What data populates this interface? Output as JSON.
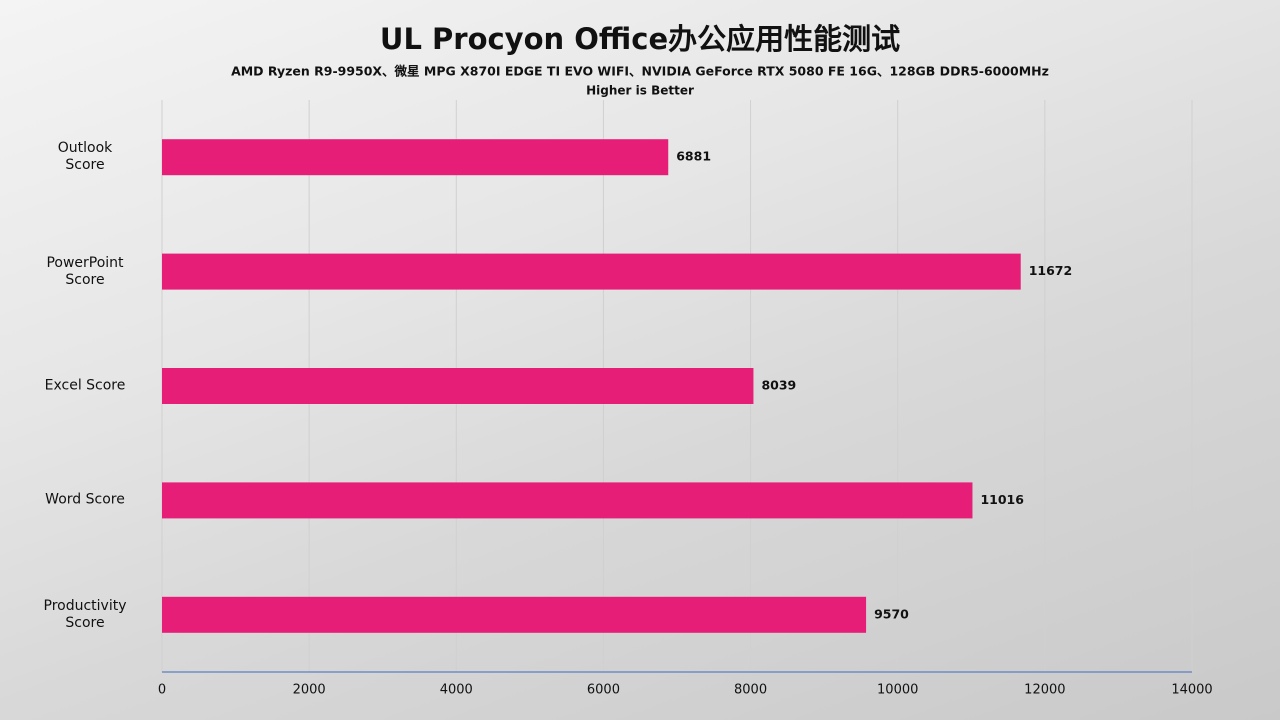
{
  "chart_data": {
    "type": "bar",
    "orientation": "horizontal",
    "title": "UL Procyon Office办公应用性能测试",
    "subtitle": "AMD Ryzen R9-9950X、微星 MPG X870I EDGE TI EVO WIFI、NVIDIA GeForce RTX 5080 FE 16G、128GB DDR5-6000MHz",
    "note": "Higher is Better",
    "categories": [
      "Outlook\nScore",
      "PowerPoint\nScore",
      "Excel Score",
      "Word Score",
      "Productivity\nScore"
    ],
    "values": [
      6881,
      11672,
      8039,
      11016,
      9570
    ],
    "color": "#e61e78",
    "xlim": [
      0,
      14000
    ],
    "xticks": [
      0,
      2000,
      4000,
      6000,
      8000,
      10000,
      12000,
      14000
    ],
    "grid": true
  }
}
